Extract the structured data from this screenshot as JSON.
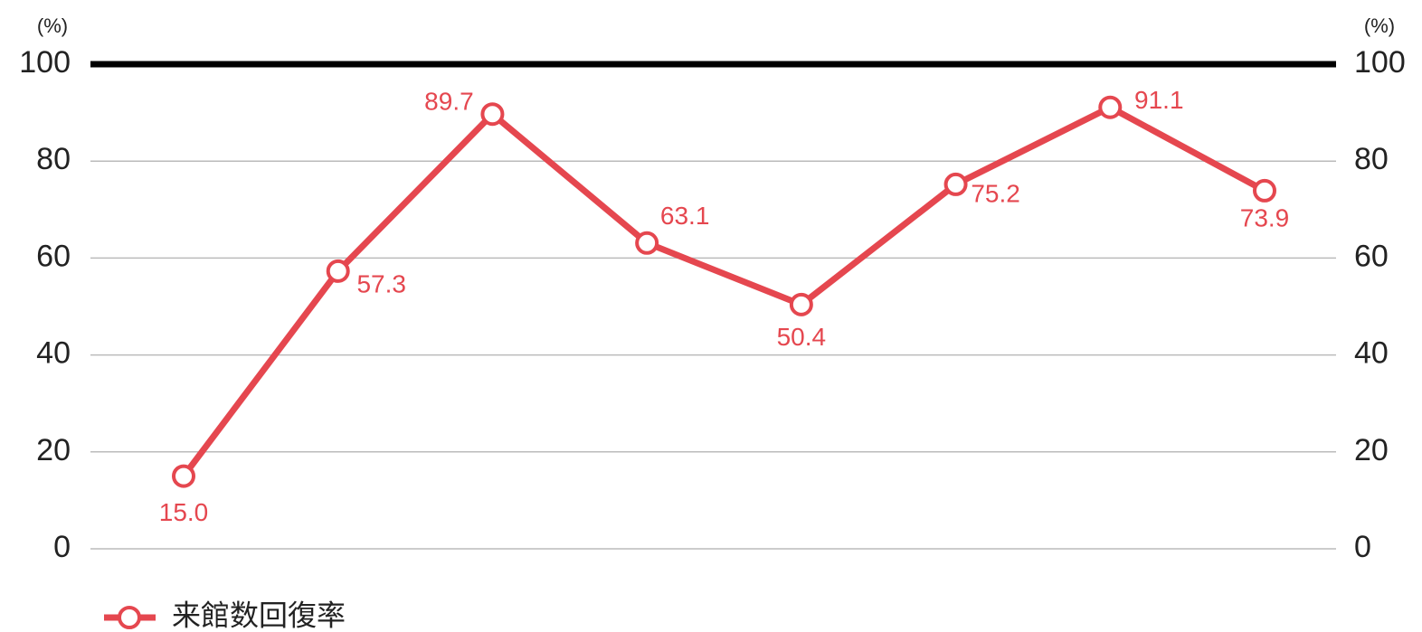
{
  "chart_data": {
    "type": "line",
    "ylabel": "(%)",
    "y2label": "(%)",
    "categories": [
      null,
      null,
      null,
      null,
      null,
      null,
      null,
      null
    ],
    "series": [
      {
        "name": "来館数回復率",
        "color": "#e5474f",
        "values": [
          15.0,
          57.3,
          89.7,
          63.1,
          50.4,
          75.2,
          91.1,
          73.9
        ],
        "value_labels": [
          "15.0",
          "57.3",
          "89.7",
          "63.1",
          "50.4",
          "75.2",
          "91.1",
          "73.9"
        ]
      }
    ],
    "ylim": [
      0,
      100
    ],
    "yticks": [
      0,
      20,
      40,
      60,
      80,
      100
    ],
    "y2lim": [
      0,
      100
    ],
    "y2ticks": [
      0,
      20,
      40,
      60,
      80,
      100
    ],
    "grid": true,
    "legend": "bottom-left"
  }
}
